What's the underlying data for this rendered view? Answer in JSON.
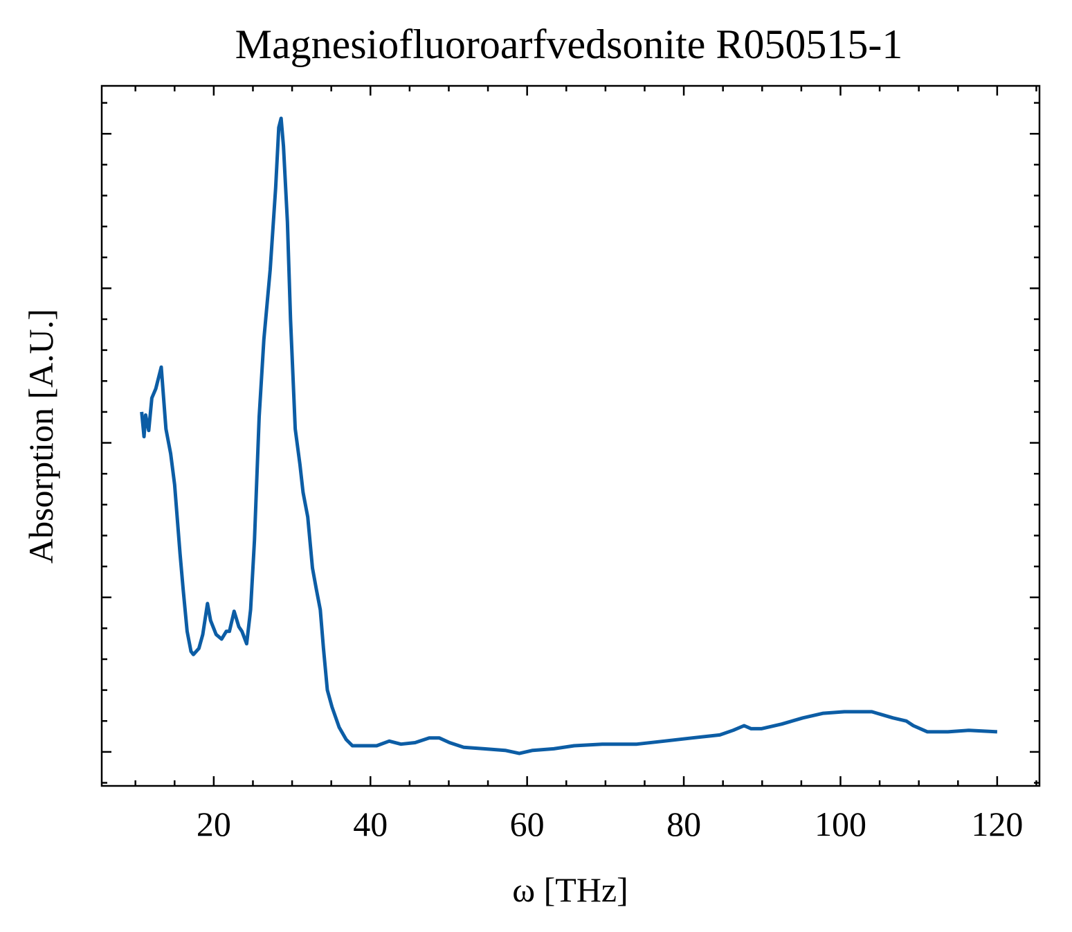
{
  "chart_data": {
    "type": "line",
    "title": "Magnesiofluoroarfvedsonite R050515-1",
    "x_label": "ω [THz]",
    "y_label": "Absorption [A.U.]",
    "color": "#0c5da5",
    "x": [
      10.8,
      11.1,
      11.3,
      11.7,
      12.1,
      12.6,
      13.3,
      13.9,
      14.5,
      15.0,
      15.7,
      16.1,
      16.6,
      17.1,
      17.4,
      18.1,
      18.6,
      19.2,
      19.6,
      20.3,
      21.0,
      21.6,
      22.0,
      22.6,
      23.2,
      23.6,
      24.2,
      24.7,
      25.2,
      25.8,
      26.4,
      27.2,
      27.9,
      28.3,
      28.6,
      28.9,
      29.4,
      29.8,
      30.4,
      31.0,
      31.4,
      32.0,
      32.6,
      33.1,
      33.6,
      34.0,
      34.5,
      35.1,
      36.0,
      36.9,
      37.7,
      39.5,
      40.8,
      42.4,
      43.9,
      45.7,
      47.5,
      48.8,
      50.1,
      51.9,
      54.5,
      57.2,
      59.0,
      60.7,
      63.4,
      66.0,
      69.6,
      74.0,
      77.5,
      81.0,
      84.6,
      86.3,
      87.7,
      88.6,
      89.9,
      92.5,
      95.2,
      97.8,
      100.5,
      102.2,
      104.0,
      106.7,
      108.4,
      109.3,
      111.1,
      113.7,
      116.4,
      120.0
    ],
    "values": [
      2.2,
      2.04,
      2.18,
      2.08,
      2.29,
      2.35,
      2.49,
      2.09,
      1.93,
      1.73,
      1.28,
      1.05,
      0.78,
      0.65,
      0.63,
      0.67,
      0.76,
      0.96,
      0.85,
      0.76,
      0.73,
      0.78,
      0.78,
      0.91,
      0.81,
      0.78,
      0.7,
      0.92,
      1.37,
      2.17,
      2.67,
      3.12,
      3.65,
      4.04,
      4.1,
      3.92,
      3.43,
      2.8,
      2.09,
      1.86,
      1.68,
      1.52,
      1.19,
      1.05,
      0.92,
      0.67,
      0.4,
      0.29,
      0.16,
      0.08,
      0.04,
      0.04,
      0.04,
      0.07,
      0.05,
      0.06,
      0.09,
      0.09,
      0.06,
      0.03,
      0.02,
      0.01,
      -0.01,
      0.01,
      0.02,
      0.04,
      0.05,
      0.05,
      0.07,
      0.09,
      0.11,
      0.14,
      0.17,
      0.15,
      0.15,
      0.18,
      0.22,
      0.25,
      0.26,
      0.26,
      0.26,
      0.22,
      0.2,
      0.17,
      0.13,
      0.13,
      0.14,
      0.13
    ],
    "xlim": [
      5.7,
      125.4
    ],
    "ylim": [
      -0.22,
      4.31
    ],
    "xticks": [
      20,
      40,
      60,
      80,
      100,
      120
    ],
    "xminorticks": [
      10,
      15,
      25,
      30,
      35,
      45,
      50,
      55,
      65,
      70,
      75,
      85,
      90,
      95,
      105,
      110,
      115,
      125
    ],
    "yticks": [
      0,
      1,
      2,
      3,
      4
    ],
    "yminorticks": [
      -0.2,
      0.2,
      0.4,
      0.6,
      0.8,
      1.2,
      1.4,
      1.6,
      1.8,
      2.2,
      2.4,
      2.6,
      2.8,
      3.2,
      3.4,
      3.6,
      3.8,
      4.2
    ]
  }
}
